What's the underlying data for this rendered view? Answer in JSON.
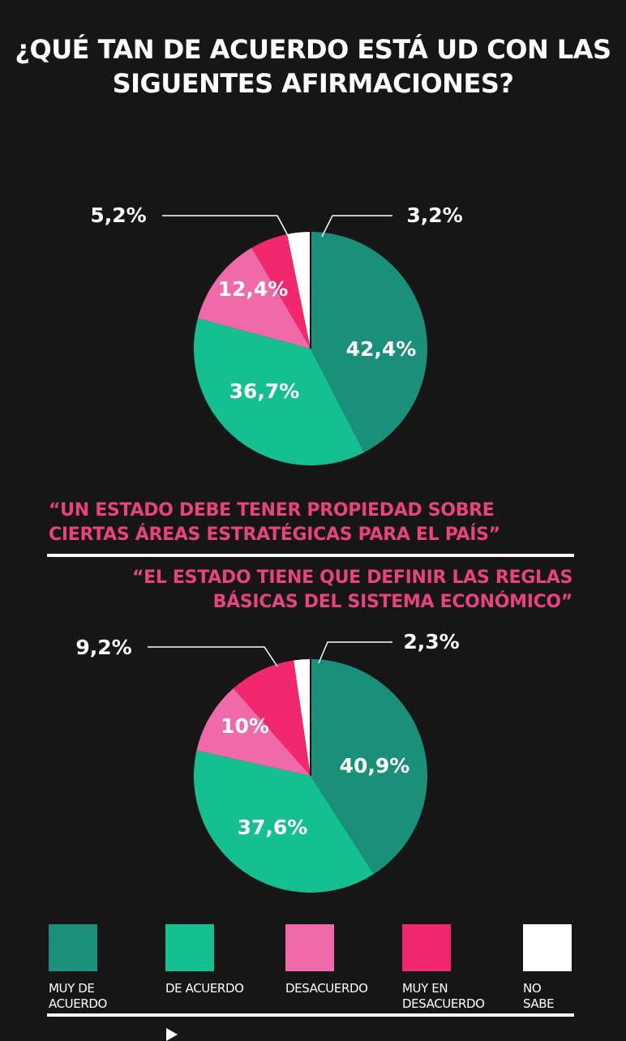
{
  "title": {
    "line1": "¿QUÉ TAN DE ACUERDO ESTÁ UD CON LAS",
    "line2": "SIGUENTES AFIRMACIONES?"
  },
  "statements": [
    {
      "line1": "“UN ESTADO DEBE TENER PROPIEDAD SOBRE",
      "line2": "CIERTAS ÁREAS ESTRATÉGICAS PARA EL PAÍS”"
    },
    {
      "line1": "“EL ESTADO TIENE QUE DEFINIR LAS REGLAS",
      "line2": "BÁSICAS DEL SISTEMA ECONÓMICO”"
    }
  ],
  "legend": [
    {
      "label1": "MUY DE",
      "label2": "ACUERDO",
      "color": "#1a8f7a"
    },
    {
      "label1": "DE ACUERDO",
      "label2": "",
      "color": "#14c08f"
    },
    {
      "label1": "DESACUERDO",
      "label2": "",
      "color": "#f06aa9"
    },
    {
      "label1": "MUY EN",
      "label2": "DESACUERDO",
      "color": "#f2286f"
    },
    {
      "label1": "NO",
      "label2": "SABE",
      "color": "#ffffff"
    }
  ],
  "chart_data": [
    {
      "type": "pie",
      "categories": [
        "MUY DE ACUERDO",
        "DE ACUERDO",
        "DESACUERDO",
        "MUY EN DESACUERDO",
        "NO SABE"
      ],
      "values": [
        42.4,
        36.7,
        12.4,
        5.2,
        3.2
      ],
      "labels": [
        "42,4%",
        "36,7%",
        "12,4%",
        "5,2%",
        "3,2%"
      ]
    },
    {
      "type": "pie",
      "categories": [
        "MUY DE ACUERDO",
        "DE ACUERDO",
        "DESACUERDO",
        "MUY EN DESACUERDO",
        "NO SABE"
      ],
      "values": [
        40.9,
        37.6,
        10,
        9.2,
        2.3
      ],
      "labels": [
        "40,9%",
        "37,6%",
        "10%",
        "9,2%",
        "2,3%"
      ]
    }
  ]
}
